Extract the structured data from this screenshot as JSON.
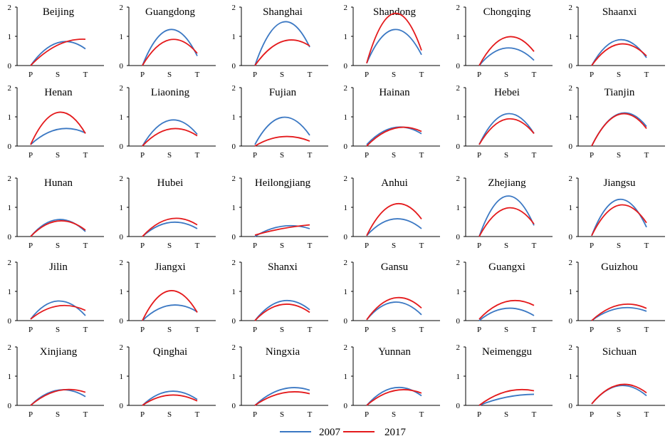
{
  "chart_data": {
    "type": "line",
    "layout": "small-multiples",
    "rows": 5,
    "cols": 6,
    "x": [
      "P",
      "S",
      "T"
    ],
    "ylim": [
      0,
      2
    ],
    "yticks": [
      "0",
      "1",
      "2"
    ],
    "legend": {
      "placement": "bottom-center",
      "entries": [
        {
          "name": "2007",
          "color": "#3b78c3"
        },
        {
          "name": "2017",
          "color": "#e41a1c"
        }
      ]
    },
    "panels": [
      {
        "title": "Beijing",
        "s2007": [
          0.0,
          0.78,
          0.57
        ],
        "s2017": [
          0.0,
          0.7,
          0.9
        ]
      },
      {
        "title": "Guangdong",
        "s2007": [
          0.0,
          1.23,
          0.33
        ],
        "s2017": [
          0.0,
          0.88,
          0.42
        ]
      },
      {
        "title": "Shanghai",
        "s2007": [
          0.0,
          1.48,
          0.63
        ],
        "s2017": [
          0.0,
          0.82,
          0.67
        ]
      },
      {
        "title": "Shandong",
        "s2007": [
          0.08,
          1.23,
          0.37
        ],
        "s2017": [
          0.08,
          1.78,
          0.52
        ]
      },
      {
        "title": "Chongqing",
        "s2007": [
          0.0,
          0.6,
          0.18
        ],
        "s2017": [
          0.0,
          0.97,
          0.48
        ]
      },
      {
        "title": "Shaanxi",
        "s2007": [
          0.0,
          0.88,
          0.27
        ],
        "s2017": [
          0.0,
          0.73,
          0.33
        ]
      },
      {
        "title": "Henan",
        "s2007": [
          0.05,
          0.57,
          0.45
        ],
        "s2017": [
          0.05,
          1.15,
          0.43
        ]
      },
      {
        "title": "Liaoning",
        "s2007": [
          0.0,
          0.88,
          0.4
        ],
        "s2017": [
          0.0,
          0.58,
          0.35
        ]
      },
      {
        "title": "Fujian",
        "s2007": [
          0.05,
          0.98,
          0.37
        ],
        "s2017": [
          0.0,
          0.32,
          0.17
        ]
      },
      {
        "title": "Hainan",
        "s2007": [
          0.05,
          0.63,
          0.42
        ],
        "s2017": [
          0.0,
          0.6,
          0.5
        ]
      },
      {
        "title": "Hebei",
        "s2007": [
          0.05,
          1.1,
          0.43
        ],
        "s2017": [
          0.05,
          0.92,
          0.43
        ]
      },
      {
        "title": "Tianjin",
        "s2007": [
          0.0,
          1.1,
          0.67
        ],
        "s2017": [
          0.0,
          1.08,
          0.6
        ]
      },
      {
        "title": "Hunan",
        "s2007": [
          0.0,
          0.58,
          0.17
        ],
        "s2017": [
          0.0,
          0.53,
          0.22
        ]
      },
      {
        "title": "Hubei",
        "s2007": [
          0.0,
          0.48,
          0.27
        ],
        "s2017": [
          0.0,
          0.6,
          0.4
        ]
      },
      {
        "title": "Heilongjiang",
        "s2007": [
          0.0,
          0.35,
          0.27
        ],
        "s2017": [
          0.05,
          0.27,
          0.4
        ]
      },
      {
        "title": "Anhui",
        "s2007": [
          0.03,
          0.6,
          0.27
        ],
        "s2017": [
          0.03,
          1.1,
          0.6
        ]
      },
      {
        "title": "Zhejiang",
        "s2007": [
          0.0,
          1.38,
          0.38
        ],
        "s2017": [
          0.0,
          0.97,
          0.43
        ]
      },
      {
        "title": "Jiangsu",
        "s2007": [
          0.03,
          1.27,
          0.32
        ],
        "s2017": [
          0.03,
          1.07,
          0.47
        ]
      },
      {
        "title": "Jilin",
        "s2007": [
          0.05,
          0.67,
          0.17
        ],
        "s2017": [
          0.05,
          0.5,
          0.35
        ]
      },
      {
        "title": "Jiangxi",
        "s2007": [
          0.0,
          0.52,
          0.3
        ],
        "s2017": [
          0.0,
          1.02,
          0.28
        ]
      },
      {
        "title": "Shanxi",
        "s2007": [
          0.0,
          0.67,
          0.37
        ],
        "s2017": [
          0.0,
          0.55,
          0.28
        ]
      },
      {
        "title": "Gansu",
        "s2007": [
          0.03,
          0.63,
          0.2
        ],
        "s2017": [
          0.03,
          0.77,
          0.43
        ]
      },
      {
        "title": "Guangxi",
        "s2007": [
          0.0,
          0.42,
          0.17
        ],
        "s2017": [
          0.05,
          0.65,
          0.52
        ]
      },
      {
        "title": "Guizhou",
        "s2007": [
          0.0,
          0.42,
          0.32
        ],
        "s2017": [
          0.0,
          0.53,
          0.42
        ]
      },
      {
        "title": "Xinjiang",
        "s2007": [
          0.0,
          0.52,
          0.3
        ],
        "s2017": [
          0.0,
          0.5,
          0.45
        ]
      },
      {
        "title": "Qinghai",
        "s2007": [
          0.0,
          0.48,
          0.2
        ],
        "s2017": [
          0.0,
          0.35,
          0.15
        ]
      },
      {
        "title": "Ningxia",
        "s2007": [
          0.0,
          0.55,
          0.52
        ],
        "s2017": [
          0.0,
          0.42,
          0.4
        ]
      },
      {
        "title": "Yunnan",
        "s2007": [
          0.0,
          0.6,
          0.33
        ],
        "s2017": [
          0.0,
          0.5,
          0.42
        ]
      },
      {
        "title": "Neimenggu",
        "s2007": [
          0.0,
          0.28,
          0.38
        ],
        "s2017": [
          0.0,
          0.47,
          0.5
        ]
      },
      {
        "title": "Sichuan",
        "s2007": [
          0.05,
          0.67,
          0.33
        ],
        "s2017": [
          0.05,
          0.7,
          0.43
        ]
      }
    ]
  }
}
